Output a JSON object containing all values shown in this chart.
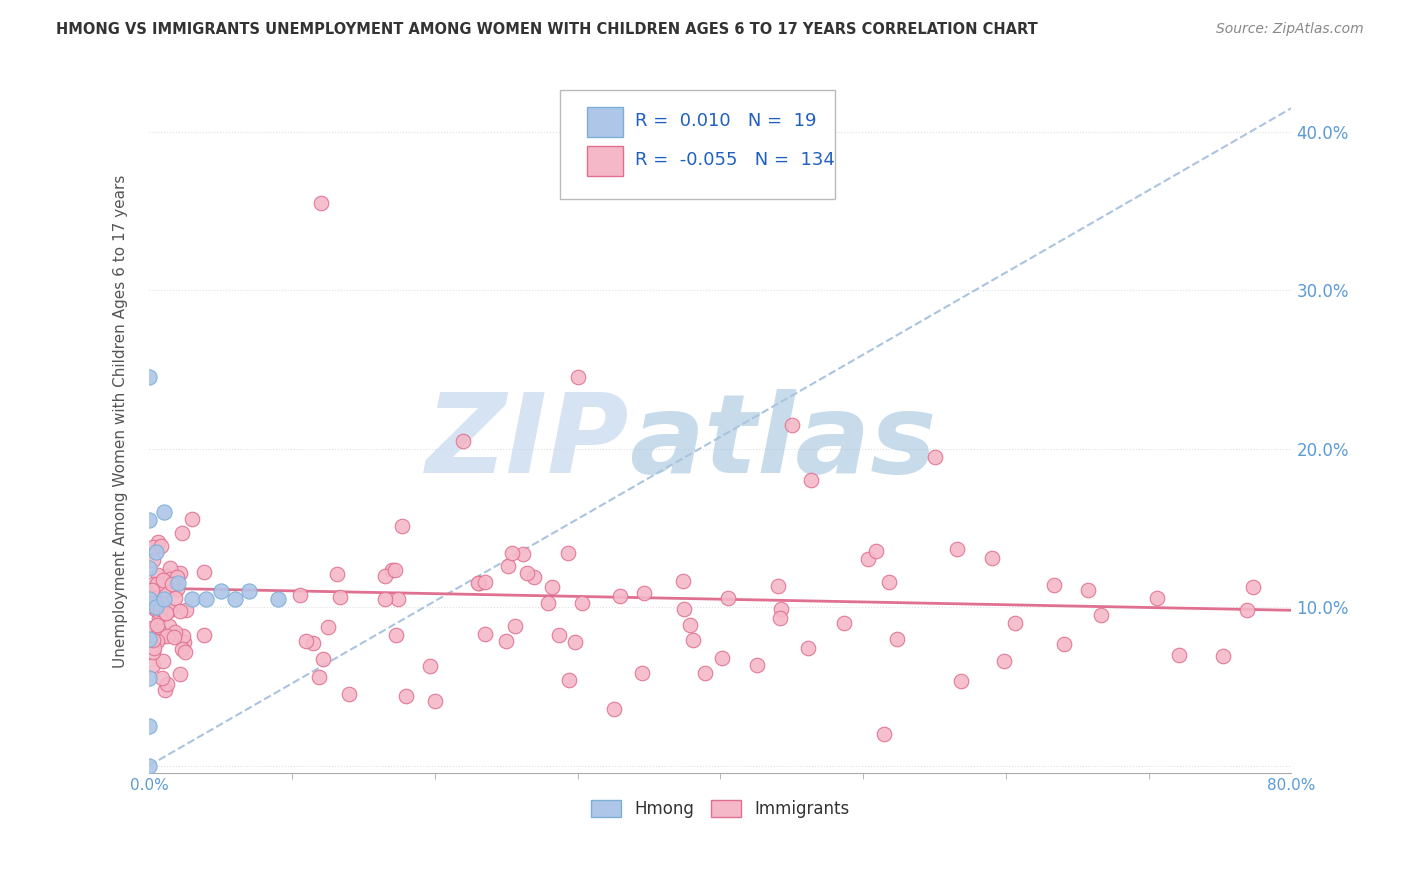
{
  "title": "HMONG VS IMMIGRANTS UNEMPLOYMENT AMONG WOMEN WITH CHILDREN AGES 6 TO 17 YEARS CORRELATION CHART",
  "source": "Source: ZipAtlas.com",
  "ylabel": "Unemployment Among Women with Children Ages 6 to 17 years",
  "xlim": [
    0.0,
    0.8
  ],
  "ylim": [
    -0.005,
    0.44
  ],
  "xtick_positions": [
    0.0,
    0.8
  ],
  "xticklabels": [
    "0.0%",
    "80.0%"
  ],
  "yticks": [
    0.0,
    0.1,
    0.2,
    0.3,
    0.4
  ],
  "yticklabels_right": [
    "",
    "10.0%",
    "20.0%",
    "30.0%",
    "40.0%"
  ],
  "hmong_color": "#aec6e8",
  "immigrants_color": "#f4b8c8",
  "hmong_edge_color": "#7bafd4",
  "immigrants_edge_color": "#e07090",
  "trend_hmong_color": "#aac4e0",
  "trend_immigrants_color": "#e07090",
  "legend_R_hmong": "0.010",
  "legend_N_hmong": "19",
  "legend_R_immigrants": "-0.055",
  "legend_N_immigrants": "134",
  "watermark_zip": "ZIP",
  "watermark_atlas": "atlas",
  "watermark_color_zip": "#c5d8ee",
  "watermark_color_atlas": "#90b8d8",
  "grid_color": "#e0e0e0",
  "tick_color": "#5b9bd5",
  "legend_text_color": "#2060c0",
  "title_color": "#333333",
  "source_color": "#888888",
  "ylabel_color": "#555555",
  "hmong_trend_x0": 0.0,
  "hmong_trend_y0": 0.0,
  "hmong_trend_x1": 0.8,
  "hmong_trend_y1": 0.415,
  "imm_trend_x0": 0.0,
  "imm_trend_y0": 0.112,
  "imm_trend_x1": 0.8,
  "imm_trend_y1": 0.098
}
